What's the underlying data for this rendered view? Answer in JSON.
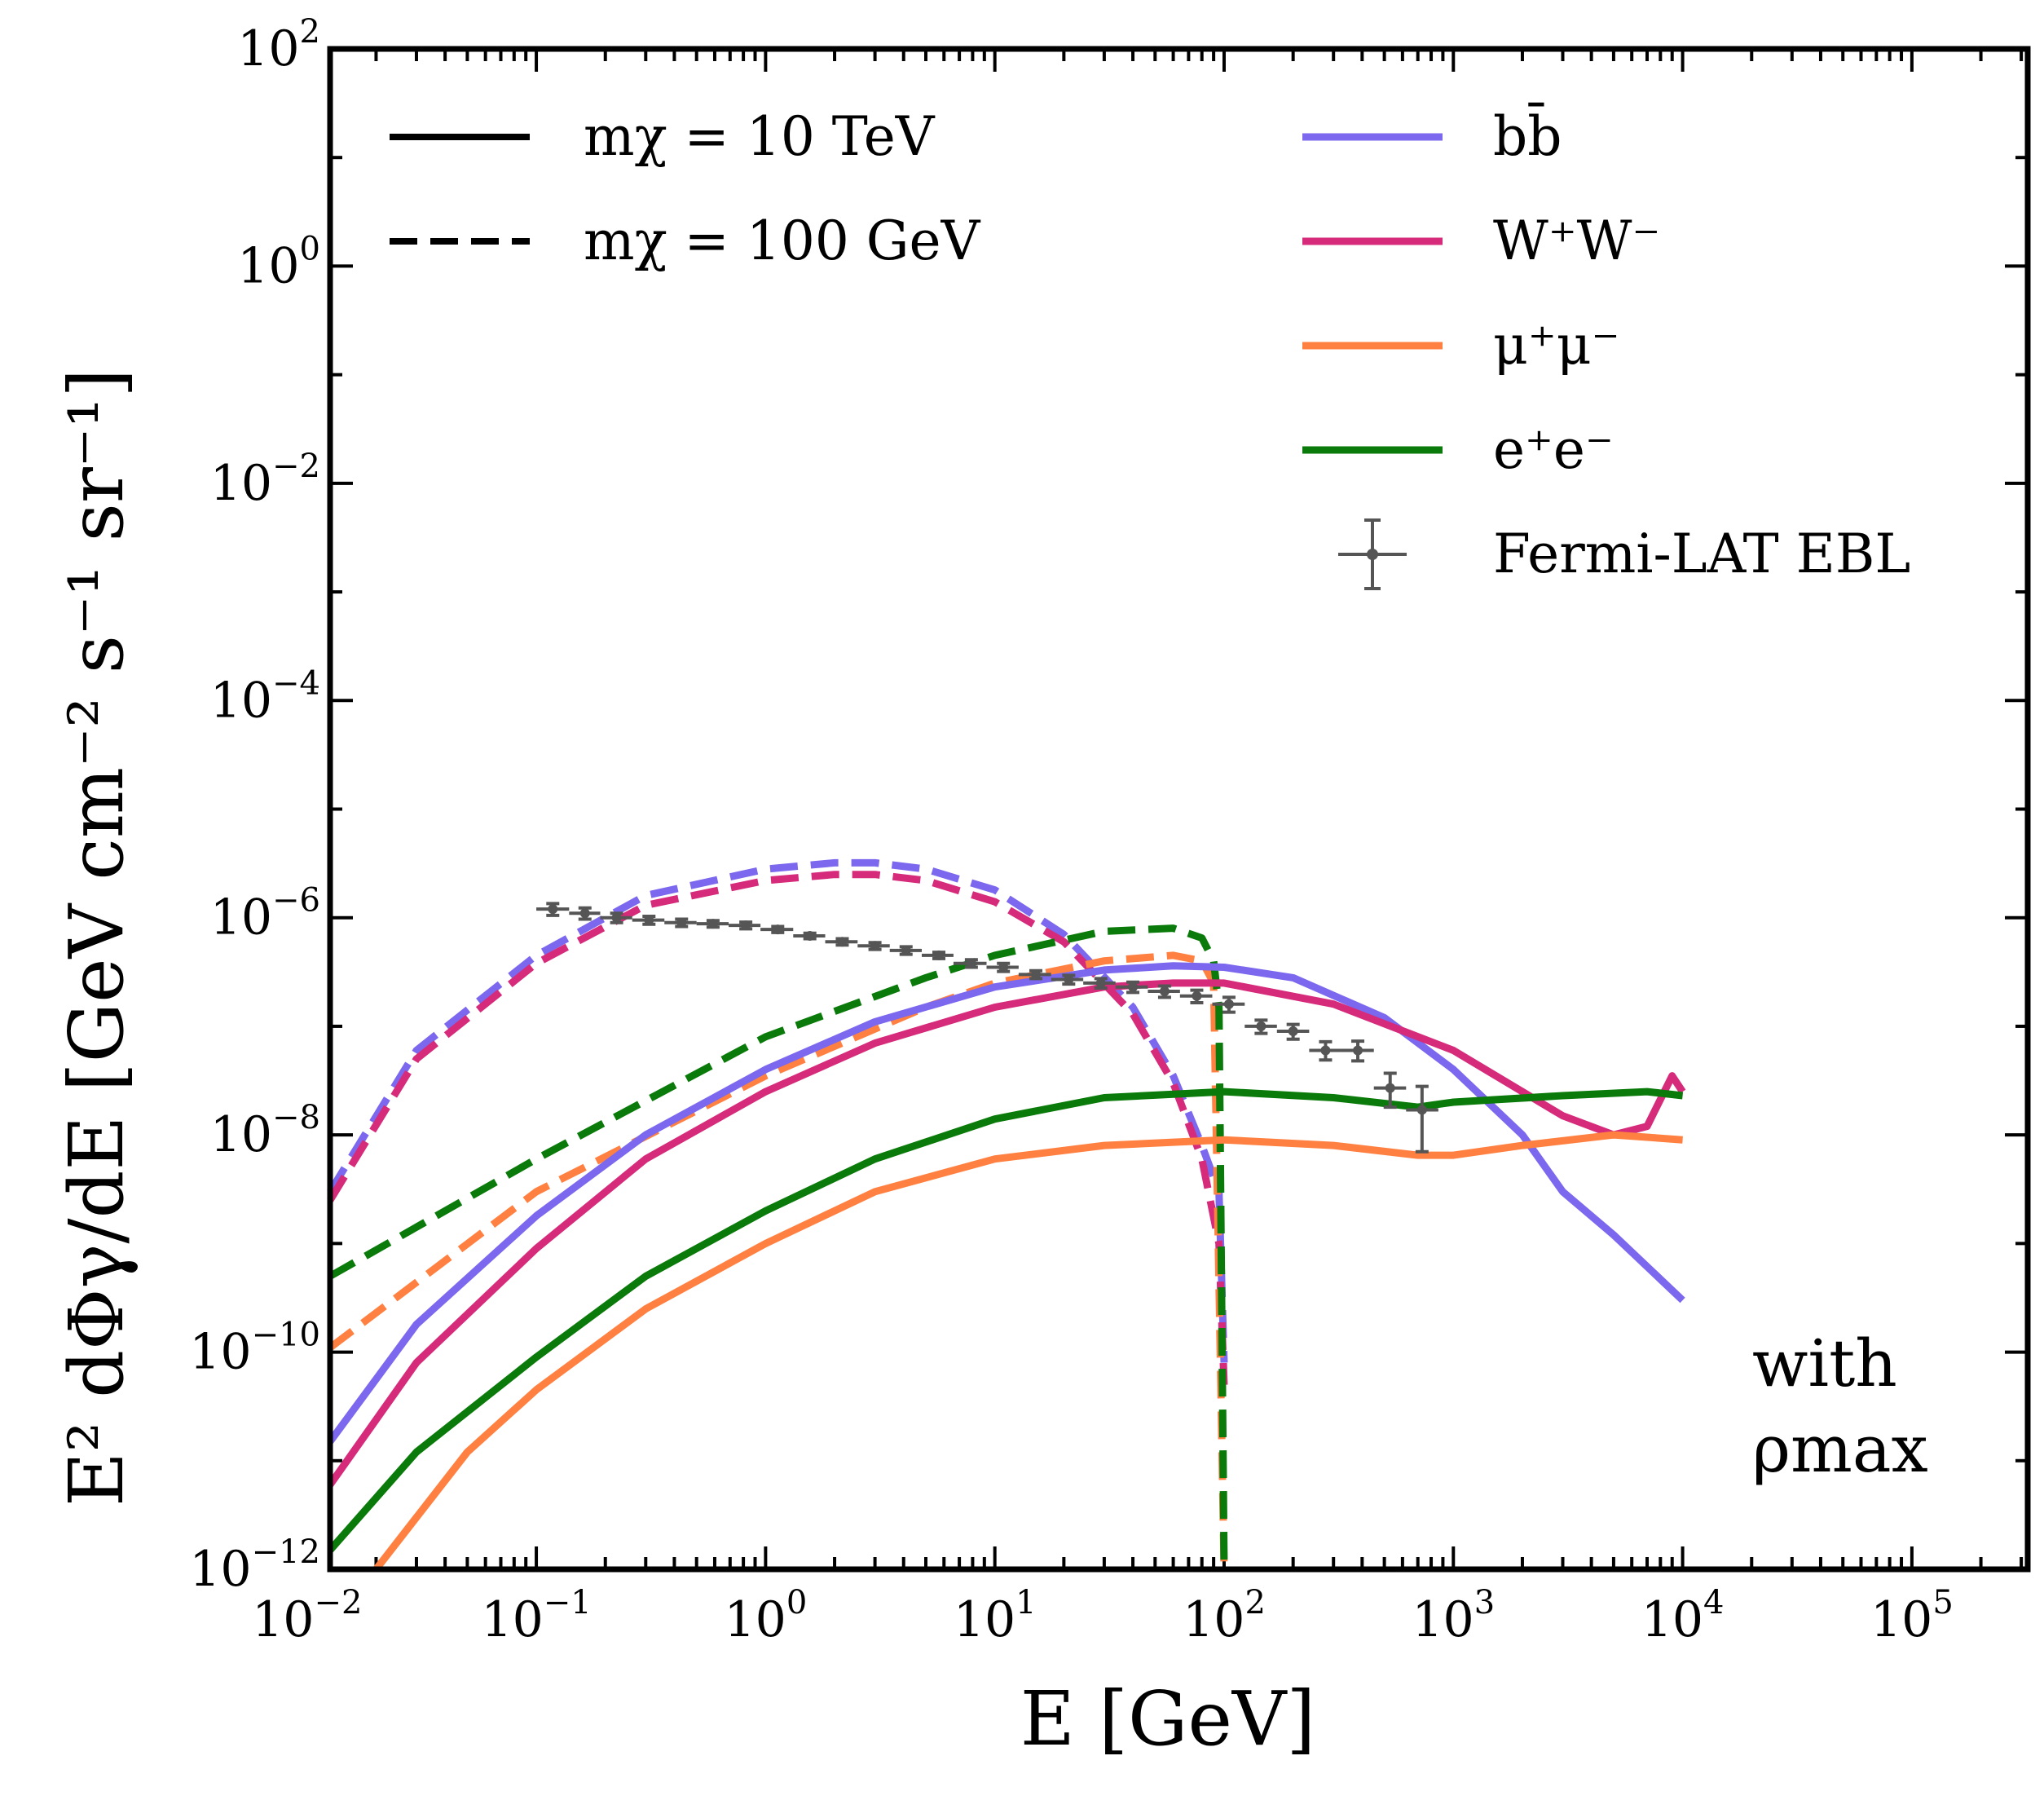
{
  "chart_data": {
    "type": "line",
    "xlabel": "E [GeV]",
    "ylabel": "E² dΦγ/dE [GeV cm⁻² s⁻¹ sr⁻¹]",
    "x_scale": "log",
    "y_scale": "log",
    "xlim": [
      0.0126,
      320000.0
    ],
    "ylim": [
      1e-12,
      100
    ],
    "x_ticks": [
      {
        "base": "10",
        "exp": "−2"
      },
      {
        "base": "10",
        "exp": "−1"
      },
      {
        "base": "10",
        "exp": "0"
      },
      {
        "base": "10",
        "exp": "1"
      },
      {
        "base": "10",
        "exp": "2"
      },
      {
        "base": "10",
        "exp": "3"
      },
      {
        "base": "10",
        "exp": "4"
      },
      {
        "base": "10",
        "exp": "5"
      }
    ],
    "y_ticks": [
      {
        "base": "10",
        "exp": "−12"
      },
      {
        "base": "10",
        "exp": "−10"
      },
      {
        "base": "10",
        "exp": "−8"
      },
      {
        "base": "10",
        "exp": "−6"
      },
      {
        "base": "10",
        "exp": "−4"
      },
      {
        "base": "10",
        "exp": "−2"
      },
      {
        "base": "10",
        "exp": "0"
      },
      {
        "base": "10",
        "exp": "2"
      }
    ],
    "colors": {
      "bb": "#7b68ee",
      "ww": "#d62a7a",
      "mumu": "#ff8040",
      "ee": "#0a7a0a",
      "fermi": "#555555"
    },
    "legend_linestyle": [
      {
        "label": "mχ = 10 TeV",
        "style": "solid"
      },
      {
        "label": "mχ = 100 GeV",
        "style": "dashed"
      }
    ],
    "legend_channels": [
      {
        "label": "bb̄",
        "color": "#7b68ee"
      },
      {
        "label": "W⁺W⁻",
        "color": "#d62a7a"
      },
      {
        "label": "μ⁺μ⁻",
        "color": "#ff8040"
      },
      {
        "label": "e⁺e⁻",
        "color": "#0a7a0a"
      },
      {
        "label": "Fermi-LAT EBL",
        "color": "#555555"
      }
    ],
    "annotation": [
      "with",
      "ρmax"
    ],
    "series": [
      {
        "channel": "bb",
        "mass": "100 GeV",
        "style": "dashed",
        "x": [
          0.0126,
          0.03,
          0.1,
          0.3,
          1,
          2,
          3,
          5,
          10,
          20,
          40,
          60,
          80,
          95,
          100
        ],
        "y": [
          3e-09,
          6e-08,
          4.5e-07,
          1.6e-06,
          2.8e-06,
          3.2e-06,
          3.2e-06,
          2.8e-06,
          1.8e-06,
          7e-07,
          1.5e-07,
          3.5e-08,
          8e-09,
          3e-09,
          8e-11
        ]
      },
      {
        "channel": "ww",
        "mass": "100 GeV",
        "style": "dashed",
        "x": [
          0.0126,
          0.03,
          0.1,
          0.3,
          1,
          2,
          3,
          5,
          10,
          20,
          40,
          60,
          80,
          95,
          100
        ],
        "y": [
          2.5e-09,
          5e-08,
          3.8e-07,
          1.3e-06,
          2.2e-06,
          2.5e-06,
          2.5e-06,
          2.2e-06,
          1.4e-06,
          6e-07,
          1.3e-07,
          3e-08,
          6e-09,
          1e-09,
          5e-11
        ]
      },
      {
        "channel": "mumu",
        "mass": "100 GeV",
        "style": "dashed",
        "x": [
          0.0126,
          0.1,
          1,
          5,
          10,
          30,
          60,
          80,
          90,
          100
        ],
        "y": [
          1.1e-10,
          3e-09,
          3.5e-08,
          1.5e-07,
          2.5e-07,
          4e-07,
          4.5e-07,
          4e-07,
          2.5e-07,
          1e-12
        ]
      },
      {
        "channel": "ee",
        "mass": "100 GeV",
        "style": "dashed",
        "x": [
          0.0126,
          0.1,
          1,
          5,
          10,
          30,
          60,
          80,
          90,
          95,
          100
        ],
        "y": [
          5e-10,
          6e-09,
          8e-08,
          2.8e-07,
          4.5e-07,
          7.5e-07,
          8e-07,
          6.5e-07,
          4e-07,
          1.5e-07,
          1e-12
        ]
      },
      {
        "channel": "bb",
        "mass": "10 TeV",
        "style": "solid",
        "x": [
          0.0126,
          0.03,
          0.1,
          0.3,
          1,
          3,
          10,
          30,
          60,
          100,
          200,
          500,
          1000,
          2000,
          3000,
          5000,
          10000
        ],
        "y": [
          1.5e-11,
          1.8e-10,
          1.8e-09,
          1e-08,
          4e-08,
          1.1e-07,
          2.3e-07,
          3.3e-07,
          3.6e-07,
          3.5e-07,
          2.8e-07,
          1.2e-07,
          4e-08,
          1e-08,
          3e-09,
          1.2e-09,
          3e-10
        ]
      },
      {
        "channel": "ww",
        "mass": "10 TeV",
        "style": "solid",
        "x": [
          0.0126,
          0.03,
          0.1,
          0.3,
          1,
          3,
          10,
          30,
          60,
          100,
          300,
          1000,
          2000,
          3000,
          5000,
          7000,
          9000,
          10000
        ],
        "y": [
          6e-12,
          8e-11,
          9e-10,
          6e-09,
          2.5e-08,
          7e-08,
          1.5e-07,
          2.3e-07,
          2.5e-07,
          2.5e-07,
          1.6e-07,
          6e-08,
          2.5e-08,
          1.5e-08,
          1e-08,
          1.2e-08,
          3.5e-08,
          2.5e-08
        ]
      },
      {
        "channel": "mumu",
        "mass": "10 TeV",
        "style": "solid",
        "x": [
          0.02,
          0.05,
          0.1,
          0.3,
          1,
          3,
          10,
          30,
          100,
          300,
          700,
          1000,
          2000,
          5000,
          10000
        ],
        "y": [
          1e-12,
          1.2e-11,
          4.5e-11,
          2.5e-10,
          1e-09,
          3e-09,
          6e-09,
          8e-09,
          9e-09,
          8e-09,
          6.5e-09,
          6.5e-09,
          8e-09,
          1e-08,
          9e-09
        ]
      },
      {
        "channel": "ee",
        "mass": "10 TeV",
        "style": "solid",
        "x": [
          0.0126,
          0.03,
          0.1,
          0.3,
          1,
          3,
          10,
          30,
          100,
          300,
          700,
          1000,
          3000,
          7000,
          10000
        ],
        "y": [
          1.5e-12,
          1.2e-11,
          9e-11,
          5e-10,
          2e-09,
          6e-09,
          1.4e-08,
          2.2e-08,
          2.5e-08,
          2.2e-08,
          1.8e-08,
          2e-08,
          2.3e-08,
          2.5e-08,
          2.3e-08
        ]
      }
    ],
    "fermi_lat_ebl": [
      {
        "x": 0.118,
        "xlo": 0.1,
        "xhi": 0.139,
        "y": 1.2e-06,
        "ylo": 1.05e-06,
        "yhi": 1.35e-06
      },
      {
        "x": 0.163,
        "xlo": 0.139,
        "xhi": 0.19,
        "y": 1.1e-06,
        "ylo": 9.7e-07,
        "yhi": 1.23e-06
      },
      {
        "x": 0.224,
        "xlo": 0.19,
        "xhi": 0.262,
        "y": 1e-06,
        "ylo": 9e-07,
        "yhi": 1.1e-06
      },
      {
        "x": 0.31,
        "xlo": 0.262,
        "xhi": 0.362,
        "y": 9.5e-07,
        "ylo": 8.7e-07,
        "yhi": 1.03e-06
      },
      {
        "x": 0.43,
        "xlo": 0.362,
        "xhi": 0.5,
        "y": 9e-07,
        "ylo": 8.3e-07,
        "yhi": 9.7e-07
      },
      {
        "x": 0.59,
        "xlo": 0.5,
        "xhi": 0.69,
        "y": 8.8e-07,
        "ylo": 8.2e-07,
        "yhi": 9.4e-07
      },
      {
        "x": 0.82,
        "xlo": 0.69,
        "xhi": 0.95,
        "y": 8.5e-07,
        "ylo": 7.9e-07,
        "yhi": 9.1e-07
      },
      {
        "x": 1.13,
        "xlo": 0.95,
        "xhi": 1.32,
        "y": 7.8e-07,
        "ylo": 7.3e-07,
        "yhi": 8.3e-07
      },
      {
        "x": 1.56,
        "xlo": 1.32,
        "xhi": 1.82,
        "y": 6.8e-07,
        "ylo": 6.4e-07,
        "yhi": 7.2e-07
      },
      {
        "x": 2.16,
        "xlo": 1.82,
        "xhi": 2.52,
        "y": 6e-07,
        "ylo": 5.6e-07,
        "yhi": 6.4e-07
      },
      {
        "x": 3.0,
        "xlo": 2.52,
        "xhi": 3.48,
        "y": 5.5e-07,
        "ylo": 5.1e-07,
        "yhi": 5.9e-07
      },
      {
        "x": 4.1,
        "xlo": 3.48,
        "xhi": 4.8,
        "y": 5e-07,
        "ylo": 4.6e-07,
        "yhi": 5.4e-07
      },
      {
        "x": 5.7,
        "xlo": 4.8,
        "xhi": 6.6,
        "y": 4.5e-07,
        "ylo": 4.2e-07,
        "yhi": 4.8e-07
      },
      {
        "x": 7.9,
        "xlo": 6.6,
        "xhi": 9.2,
        "y": 3.8e-07,
        "ylo": 3.5e-07,
        "yhi": 4.1e-07
      },
      {
        "x": 10.9,
        "xlo": 9.2,
        "xhi": 12.7,
        "y": 3.5e-07,
        "ylo": 3.2e-07,
        "yhi": 3.8e-07
      },
      {
        "x": 15.1,
        "xlo": 12.7,
        "xhi": 17.6,
        "y": 3e-07,
        "ylo": 2.75e-07,
        "yhi": 3.25e-07
      },
      {
        "x": 21.0,
        "xlo": 17.6,
        "xhi": 24.3,
        "y": 2.7e-07,
        "ylo": 2.45e-07,
        "yhi": 2.95e-07
      },
      {
        "x": 29.0,
        "xlo": 24.3,
        "xhi": 33.6,
        "y": 2.5e-07,
        "ylo": 2.25e-07,
        "yhi": 2.75e-07
      },
      {
        "x": 40.0,
        "xlo": 33.6,
        "xhi": 46.5,
        "y": 2.3e-07,
        "ylo": 2.05e-07,
        "yhi": 2.55e-07
      },
      {
        "x": 55.0,
        "xlo": 46.5,
        "xhi": 64.2,
        "y": 2.1e-07,
        "ylo": 1.85e-07,
        "yhi": 2.35e-07
      },
      {
        "x": 76.0,
        "xlo": 64.2,
        "xhi": 88.8,
        "y": 1.9e-07,
        "ylo": 1.65e-07,
        "yhi": 2.15e-07
      },
      {
        "x": 105.0,
        "xlo": 88.8,
        "xhi": 123,
        "y": 1.6e-07,
        "ylo": 1.35e-07,
        "yhi": 1.85e-07
      },
      {
        "x": 145.0,
        "xlo": 123,
        "xhi": 170,
        "y": 1e-07,
        "ylo": 8.6e-08,
        "yhi": 1.14e-07
      },
      {
        "x": 200.0,
        "xlo": 170,
        "xhi": 235,
        "y": 9e-08,
        "ylo": 7.6e-08,
        "yhi": 1.04e-07
      },
      {
        "x": 277.0,
        "xlo": 235,
        "xhi": 325,
        "y": 6e-08,
        "ylo": 4.9e-08,
        "yhi": 7.2e-08
      },
      {
        "x": 383.0,
        "xlo": 325,
        "xhi": 450,
        "y": 6e-08,
        "ylo": 4.8e-08,
        "yhi": 7.3e-08
      },
      {
        "x": 530.0,
        "xlo": 450,
        "xhi": 622,
        "y": 2.7e-08,
        "ylo": 1.8e-08,
        "yhi": 3.7e-08
      },
      {
        "x": 730.0,
        "xlo": 622,
        "xhi": 860,
        "y": 1.7e-08,
        "ylo": 7e-09,
        "yhi": 2.8e-08
      }
    ]
  }
}
